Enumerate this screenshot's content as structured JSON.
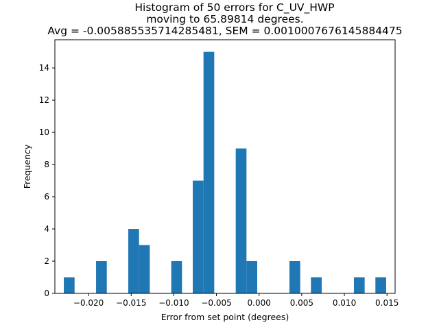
{
  "chart_data": {
    "type": "bar",
    "title_lines": [
      "Histogram of 50 errors for C_UV_HWP",
      "moving to 65.89814 degrees.",
      "Avg = -0.005885535714285481, SEM = 0.0010007676145884475"
    ],
    "xlabel": "Error from set point (degrees)",
    "ylabel": "Frequency",
    "xlim": [
      -0.02395,
      0.01595
    ],
    "ylim": [
      0,
      15.75
    ],
    "bar_color": "#1f77b4",
    "bin_width": 0.00126,
    "bins": [
      {
        "left": -0.0229,
        "count": 1
      },
      {
        "left": -0.01912,
        "count": 2
      },
      {
        "left": -0.01534,
        "count": 4
      },
      {
        "left": -0.01408,
        "count": 3
      },
      {
        "left": -0.0103,
        "count": 2
      },
      {
        "left": -0.00778,
        "count": 7
      },
      {
        "left": -0.00652,
        "count": 15
      },
      {
        "left": -0.00274,
        "count": 9
      },
      {
        "left": -0.00148,
        "count": 2
      },
      {
        "left": 0.00356,
        "count": 2
      },
      {
        "left": 0.00608,
        "count": 1
      },
      {
        "left": 0.01112,
        "count": 1
      },
      {
        "left": 0.01364,
        "count": 1
      }
    ],
    "xticks": [
      {
        "value": -0.02,
        "label": "−0.020"
      },
      {
        "value": -0.015,
        "label": "−0.015"
      },
      {
        "value": -0.01,
        "label": "−0.010"
      },
      {
        "value": -0.005,
        "label": "−0.005"
      },
      {
        "value": 0.0,
        "label": "0.000"
      },
      {
        "value": 0.005,
        "label": "0.005"
      },
      {
        "value": 0.01,
        "label": "0.010"
      },
      {
        "value": 0.015,
        "label": "0.015"
      }
    ],
    "yticks": [
      {
        "value": 0,
        "label": "0"
      },
      {
        "value": 2,
        "label": "2"
      },
      {
        "value": 4,
        "label": "4"
      },
      {
        "value": 6,
        "label": "6"
      },
      {
        "value": 8,
        "label": "8"
      },
      {
        "value": 10,
        "label": "10"
      },
      {
        "value": 12,
        "label": "12"
      },
      {
        "value": 14,
        "label": "14"
      }
    ]
  }
}
